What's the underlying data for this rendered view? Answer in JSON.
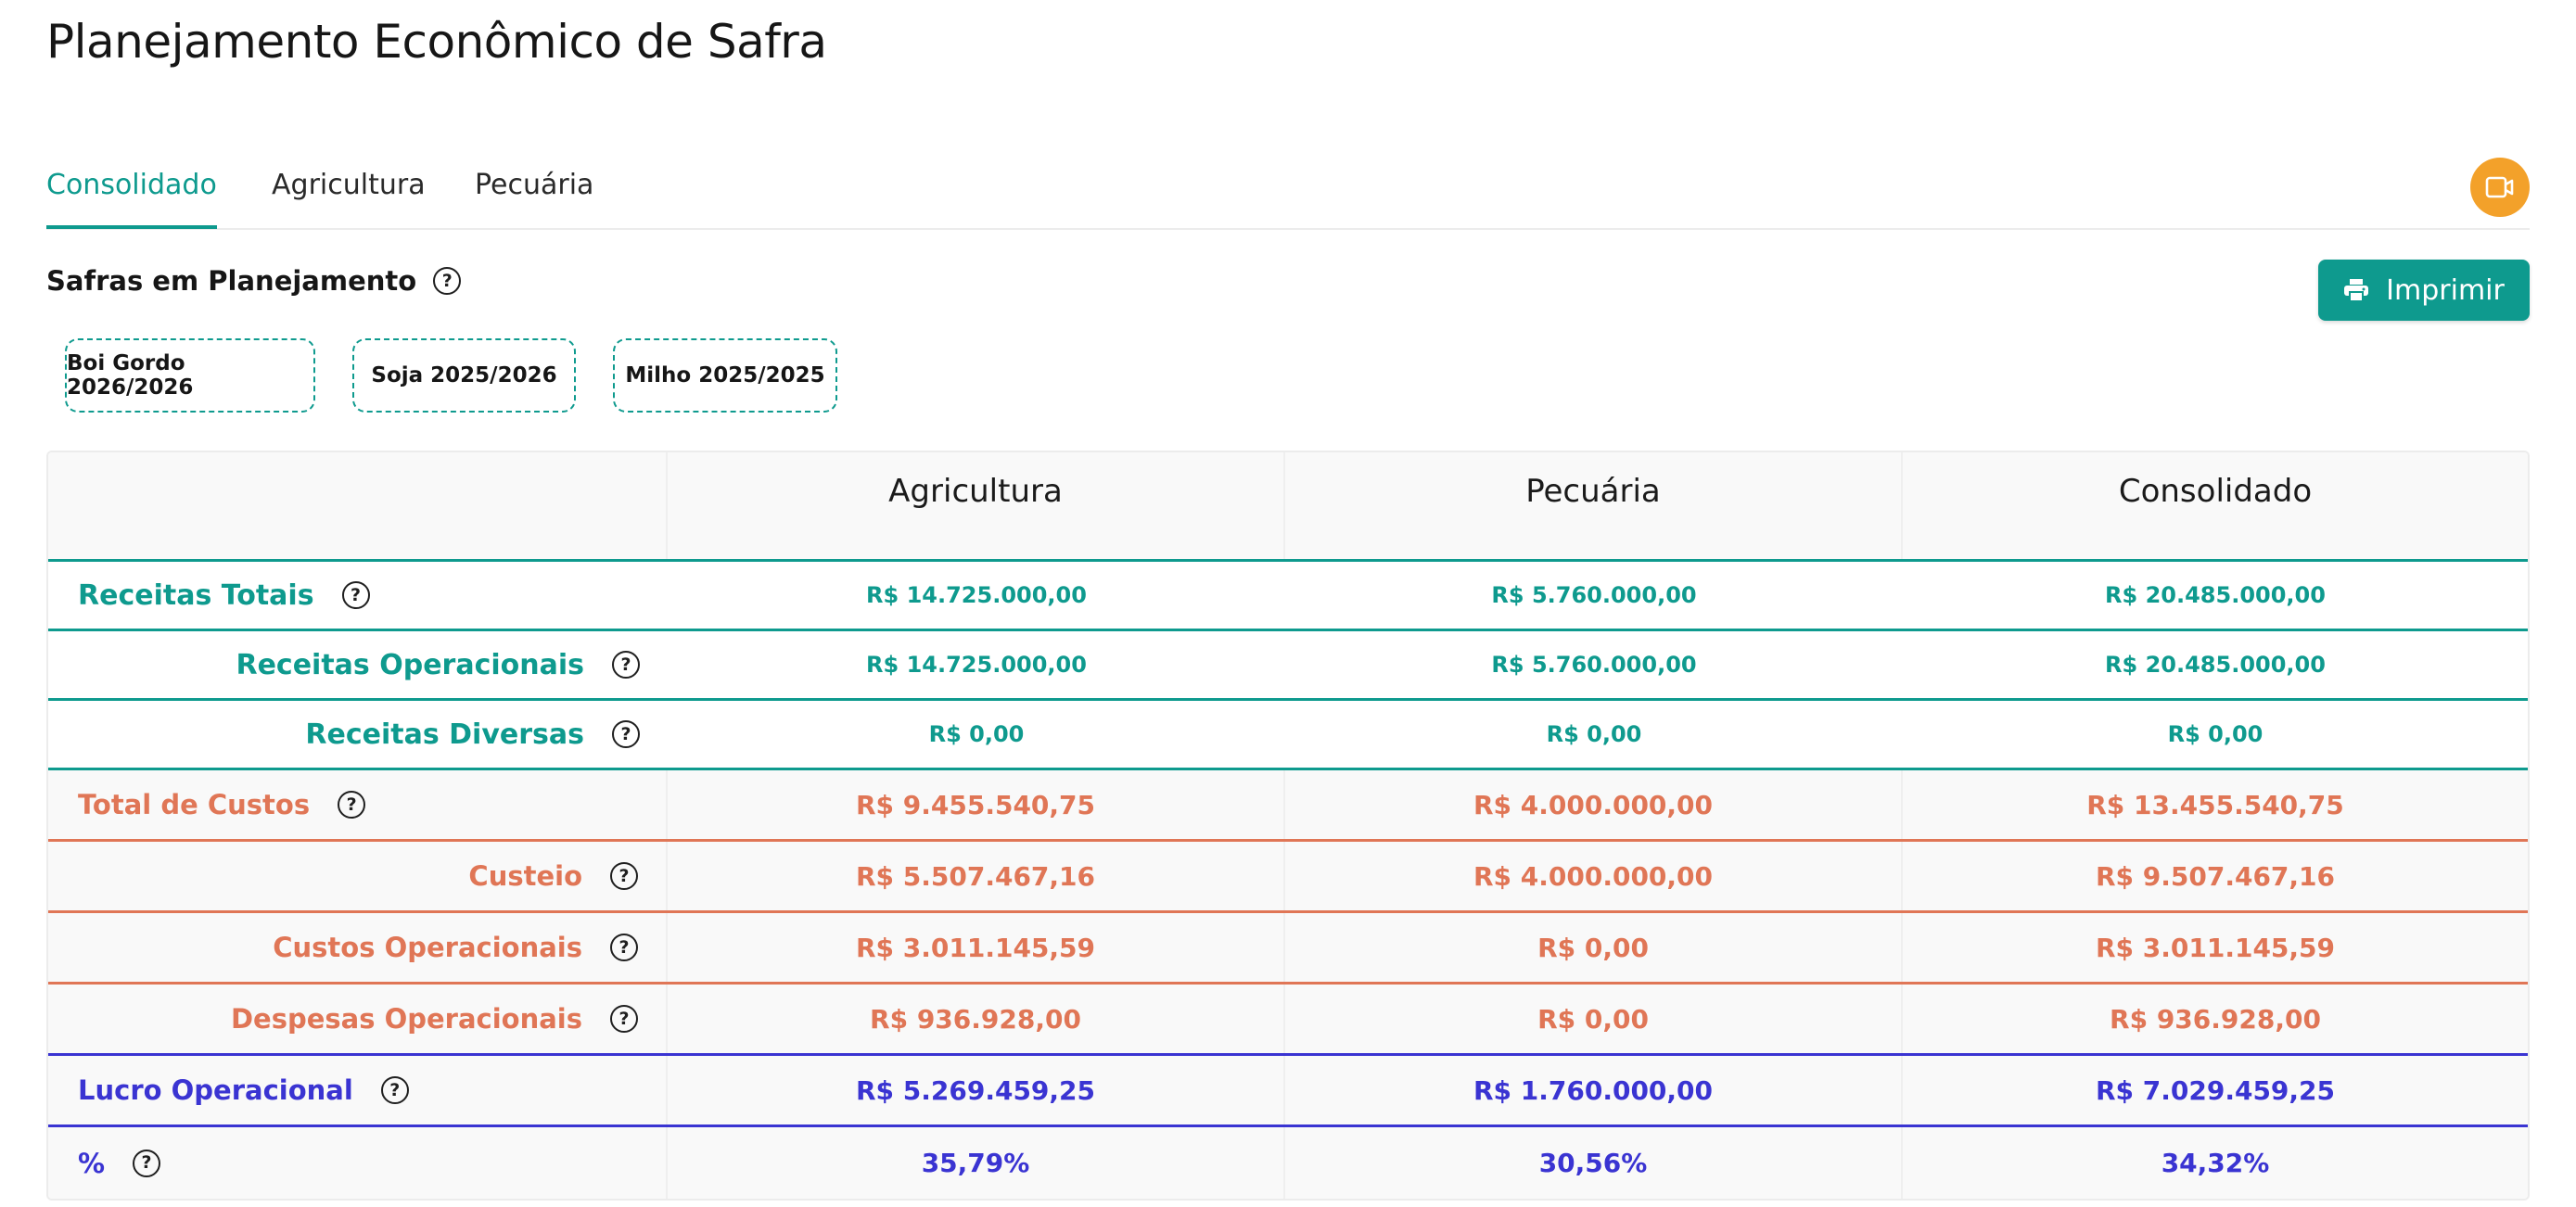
{
  "page": {
    "title": "Planejamento Econômico de Safra"
  },
  "tabs": [
    {
      "label": "Consolidado",
      "active": true
    },
    {
      "label": "Agricultura",
      "active": false
    },
    {
      "label": "Pecuária",
      "active": false
    }
  ],
  "icons": {
    "video": "video-camera-icon",
    "help": "question-circle-icon",
    "print": "printer-icon"
  },
  "section": {
    "title": "Safras em Planejamento"
  },
  "print_button": {
    "label": "Imprimir"
  },
  "chips": [
    "Boi Gordo 2026/2026",
    "Soja 2025/2026",
    "Milho 2025/2025"
  ],
  "help_symbol": "?",
  "table": {
    "columns": [
      "",
      "Agricultura",
      "Pecuária",
      "Consolidado"
    ],
    "rows": [
      {
        "label": "Receitas Totais",
        "values": [
          "R$ 14.725.000,00",
          "R$ 5.760.000,00",
          "R$ 20.485.000,00"
        ]
      },
      {
        "label": "Receitas Operacionais",
        "values": [
          "R$ 14.725.000,00",
          "R$ 5.760.000,00",
          "R$ 20.485.000,00"
        ]
      },
      {
        "label": "Receitas Diversas",
        "values": [
          "R$ 0,00",
          "R$ 0,00",
          "R$ 0,00"
        ]
      },
      {
        "label": "Total de Custos",
        "values": [
          "R$ 9.455.540,75",
          "R$ 4.000.000,00",
          "R$ 13.455.540,75"
        ]
      },
      {
        "label": "Custeio",
        "values": [
          "R$ 5.507.467,16",
          "R$ 4.000.000,00",
          "R$ 9.507.467,16"
        ]
      },
      {
        "label": "Custos Operacionais",
        "values": [
          "R$ 3.011.145,59",
          "R$ 0,00",
          "R$ 3.011.145,59"
        ]
      },
      {
        "label": "Despesas Operacionais",
        "values": [
          "R$ 936.928,00",
          "R$ 0,00",
          "R$ 936.928,00"
        ]
      },
      {
        "label": "Lucro Operacional",
        "values": [
          "R$ 5.269.459,25",
          "R$ 1.760.000,00",
          "R$ 7.029.459,25"
        ]
      },
      {
        "label": "%",
        "values": [
          "35,79%",
          "30,56%",
          "34,32%"
        ]
      }
    ]
  },
  "colors": {
    "primary": "#0e9a8e",
    "cost": "#e07656",
    "profit": "#3a34d2",
    "video_button": "#f3a12a"
  }
}
